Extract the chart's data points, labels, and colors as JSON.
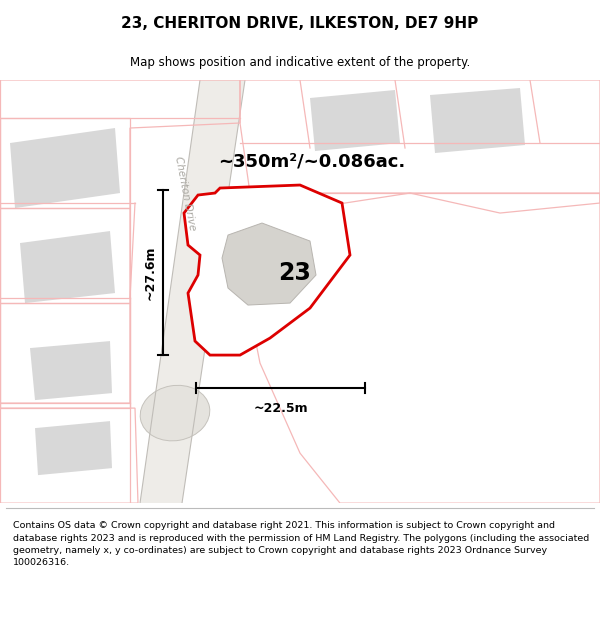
{
  "title": "23, CHERITON DRIVE, ILKESTON, DE7 9HP",
  "subtitle": "Map shows position and indicative extent of the property.",
  "footer": "Contains OS data © Crown copyright and database right 2021. This information is subject to Crown copyright and database rights 2023 and is reproduced with the permission of HM Land Registry. The polygons (including the associated geometry, namely x, y co-ordinates) are subject to Crown copyright and database rights 2023 Ordnance Survey 100026316.",
  "area_label": "~350m²/~0.086ac.",
  "number_label": "23",
  "width_label": "~22.5m",
  "height_label": "~27.6m",
  "road_label": "Cheriton Drive",
  "map_bg": "#ffffff",
  "red_color": "#dd0000",
  "light_red": "#f5b8b8",
  "lighter_red": "#fad8d8",
  "gray_block": "#d8d8d8",
  "road_color": "#e8e6e2",
  "road_edge": "#c8c5c0"
}
